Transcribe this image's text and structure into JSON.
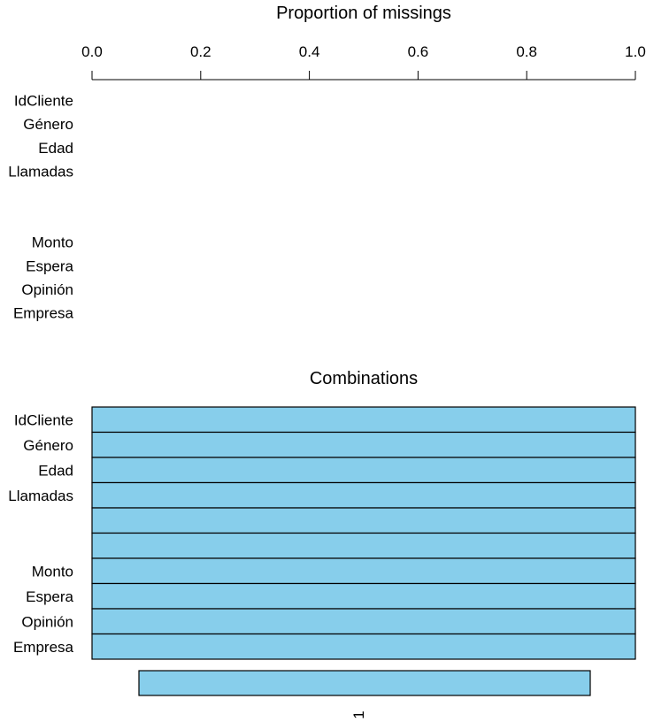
{
  "colors": {
    "bar_fill": "#87ceeb",
    "stroke": "#000000",
    "background": "#ffffff"
  },
  "chart_data": [
    {
      "type": "bar",
      "orientation": "horizontal",
      "title": "Proportion of missings",
      "xlim": [
        0,
        1
      ],
      "x_axis_position": "top",
      "x_ticks": [
        "0.0",
        "0.2",
        "0.4",
        "0.6",
        "0.8",
        "1.0"
      ],
      "categories": [
        "IdCliente",
        "Género",
        "Edad",
        "Llamadas",
        "",
        "",
        "Monto",
        "Espera",
        "Opinión",
        "Empresa"
      ],
      "values": [
        0,
        0,
        0,
        0,
        0,
        0,
        0,
        0,
        0,
        0
      ]
    },
    {
      "type": "heatmap",
      "title": "Combinations",
      "categories": [
        "IdCliente",
        "Género",
        "Edad",
        "Llamadas",
        "",
        "",
        "Monto",
        "Espera",
        "Opinión",
        "Empresa"
      ],
      "combinations": [
        {
          "missing": [
            false,
            false,
            false,
            false,
            false,
            false,
            false,
            false,
            false,
            false
          ],
          "proportion": 1.0
        }
      ],
      "bottom_label": "1"
    }
  ]
}
